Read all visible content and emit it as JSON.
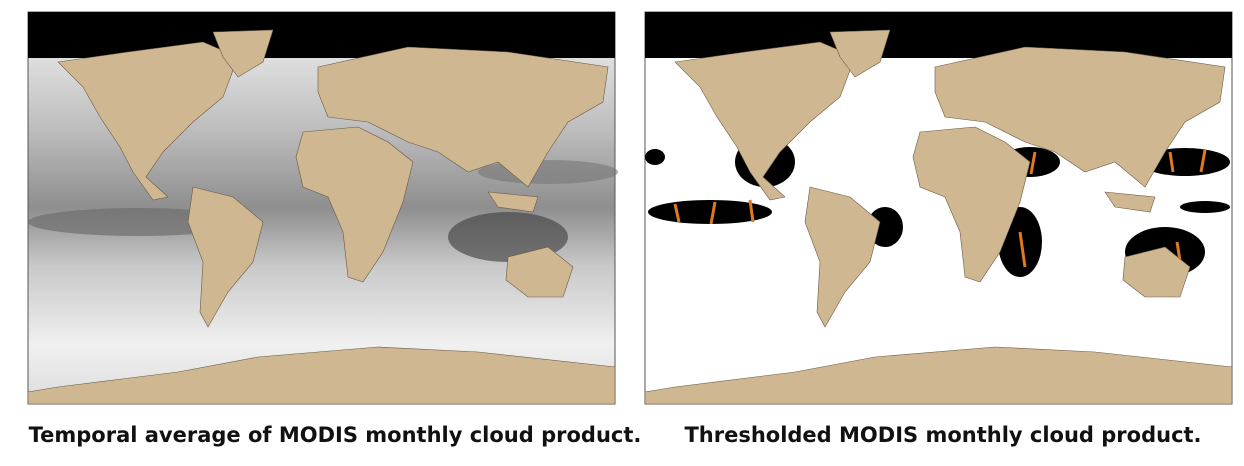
{
  "figures": [
    {
      "caption": "Temporal average of MODIS monthly cloud product."
    },
    {
      "caption": "Thresholded MODIS monthly cloud product."
    }
  ]
}
